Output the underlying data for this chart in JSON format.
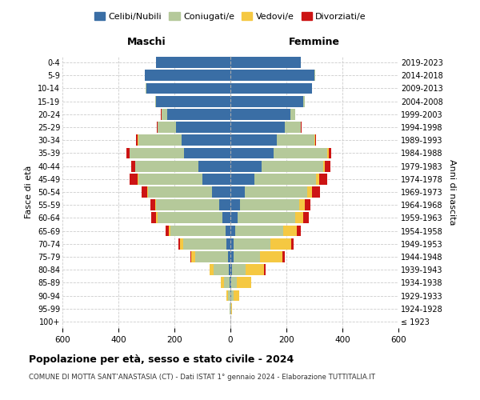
{
  "age_groups": [
    "100+",
    "95-99",
    "90-94",
    "85-89",
    "80-84",
    "75-79",
    "70-74",
    "65-69",
    "60-64",
    "55-59",
    "50-54",
    "45-49",
    "40-44",
    "35-39",
    "30-34",
    "25-29",
    "20-24",
    "15-19",
    "10-14",
    "5-9",
    "0-4"
  ],
  "birth_years": [
    "≤ 1923",
    "1924-1928",
    "1929-1933",
    "1934-1938",
    "1939-1943",
    "1944-1948",
    "1949-1953",
    "1954-1958",
    "1959-1963",
    "1964-1968",
    "1969-1973",
    "1974-1978",
    "1979-1983",
    "1984-1988",
    "1989-1993",
    "1994-1998",
    "1999-2003",
    "2004-2008",
    "2009-2013",
    "2014-2018",
    "2019-2023"
  ],
  "male": {
    "celibi": [
      0,
      0,
      0,
      2,
      5,
      10,
      15,
      18,
      30,
      40,
      65,
      100,
      115,
      165,
      175,
      195,
      225,
      265,
      300,
      305,
      265
    ],
    "coniugati": [
      1,
      3,
      8,
      22,
      55,
      115,
      155,
      195,
      230,
      225,
      230,
      230,
      225,
      195,
      155,
      65,
      20,
      5,
      2,
      2,
      2
    ],
    "vedovi": [
      0,
      1,
      5,
      10,
      15,
      15,
      10,
      8,
      5,
      3,
      2,
      2,
      1,
      1,
      1,
      1,
      2,
      0,
      0,
      0,
      0
    ],
    "divorziati": [
      0,
      0,
      0,
      0,
      0,
      2,
      5,
      10,
      18,
      18,
      20,
      28,
      12,
      10,
      5,
      2,
      1,
      0,
      0,
      0,
      0
    ]
  },
  "female": {
    "nubili": [
      0,
      0,
      2,
      3,
      5,
      10,
      12,
      18,
      25,
      35,
      50,
      85,
      110,
      155,
      165,
      195,
      215,
      260,
      290,
      300,
      250
    ],
    "coniugate": [
      0,
      2,
      8,
      20,
      50,
      95,
      130,
      170,
      205,
      210,
      225,
      220,
      220,
      190,
      135,
      55,
      15,
      5,
      2,
      2,
      2
    ],
    "vedove": [
      1,
      5,
      20,
      50,
      65,
      80,
      75,
      50,
      30,
      20,
      15,
      12,
      8,
      5,
      2,
      1,
      1,
      0,
      0,
      0,
      0
    ],
    "divorziate": [
      0,
      0,
      0,
      2,
      5,
      8,
      10,
      12,
      20,
      20,
      30,
      28,
      18,
      10,
      5,
      2,
      1,
      0,
      0,
      0,
      0
    ]
  },
  "colors": {
    "celibi": "#3a6ea5",
    "coniugati": "#b5c99a",
    "vedovi": "#f5c842",
    "divorziati": "#cc1414"
  },
  "xlim": 600,
  "title": "Popolazione per età, sesso e stato civile - 2024",
  "subtitle": "COMUNE DI MOTTA SANT’ANASTASIA (CT) - Dati ISTAT 1° gennaio 2024 - Elaborazione TUTTITALIA.IT",
  "ylabel_left": "Fasce di età",
  "ylabel_right": "Anni di nascita",
  "xlabel_maschi": "Maschi",
  "xlabel_femmine": "Femmine",
  "legend_labels": [
    "Celibi/Nubili",
    "Coniugati/e",
    "Vedovi/e",
    "Divorziati/e"
  ],
  "bg_color": "#ffffff",
  "grid_color": "#cccccc"
}
